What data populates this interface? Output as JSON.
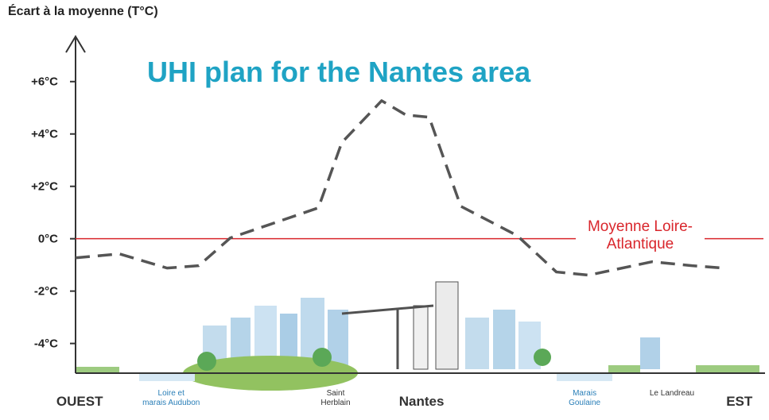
{
  "chart_data": {
    "type": "line",
    "title": "UHI plan for the Nantes area",
    "y_axis_label": "Écart à la moyenne (T°C)",
    "x": [
      0,
      6.4,
      13.3,
      17.9,
      22.5,
      28.3,
      35.3,
      38.7,
      44.5,
      48,
      51.4,
      56,
      64.2,
      69.9,
      74.6,
      83.8,
      89.6,
      94.2
    ],
    "values": [
      -0.73,
      -0.58,
      -1.12,
      -1.03,
      0.03,
      0.55,
      1.18,
      3.67,
      5.27,
      4.73,
      4.64,
      1.24,
      0.12,
      -1.27,
      -1.39,
      -0.88,
      -1.03,
      -1.12
    ],
    "color": "#555555",
    "line_style": "dashed",
    "xlim": [
      0,
      100
    ],
    "xticks": [
      {
        "value": 0.6,
        "label": "OUEST"
      },
      {
        "value": 13.9,
        "label": "Loire et\nmarais Audubon"
      },
      {
        "value": 37.8,
        "label": "Saint\nHerblain"
      },
      {
        "value": 50.3,
        "label": "Nantes"
      },
      {
        "value": 74,
        "label": "Marais\nGoulaine"
      },
      {
        "value": 86.7,
        "label": "Le Landreau"
      },
      {
        "value": 96.5,
        "label": "EST"
      }
    ],
    "ylim": [
      -4.8,
      7.6
    ],
    "yticks": [
      {
        "value": -4,
        "label": "-4°C"
      },
      {
        "value": -2,
        "label": "-2°C"
      },
      {
        "value": 0,
        "label": "0°C"
      },
      {
        "value": 2,
        "label": "+2°C"
      },
      {
        "value": 4,
        "label": "+4°C"
      },
      {
        "value": 6,
        "label": "+6°C"
      }
    ],
    "reference_line": {
      "value": 0,
      "label": "Moyenne Loire-Atlantique",
      "color": "#d9262c"
    }
  }
}
